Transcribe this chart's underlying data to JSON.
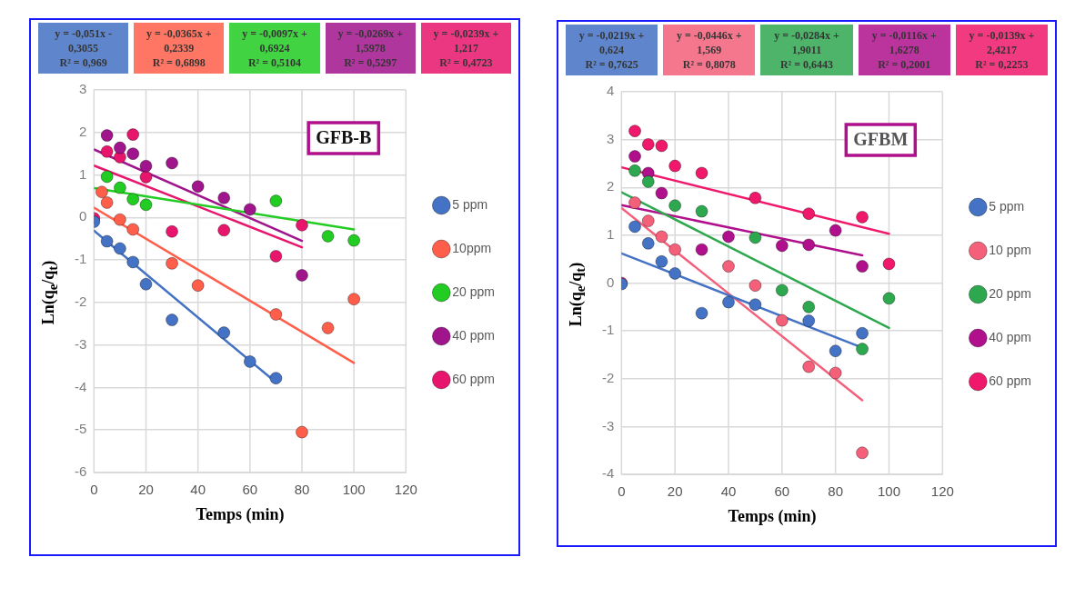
{
  "chart_data": [
    {
      "type": "scatter",
      "title": "GFB-B",
      "xlabel": "Temps (min)",
      "ylabel": "Ln(q$_{e}$/q$_{t}$)",
      "annotations": [
        "y = -0,051x - 0,3055\nR² = 0,969",
        "y = -0,0365x + 0,2339\nR² = 0,6898",
        "y = -0,0097x + 0,6924\nR² = 0,5104",
        "y = -0,0269x + 1,5978\nR² = 0,5297",
        "y = -0,0239x + 1,217\nR² = 0,4723"
      ],
      "xlim": [
        0,
        120
      ],
      "xticks": [
        0,
        20,
        40,
        60,
        80,
        100,
        120
      ],
      "ylim": [
        -6,
        3
      ],
      "yticks": [
        -6,
        -5,
        -4,
        -3,
        -2,
        -1,
        0,
        1,
        2,
        3
      ],
      "grid": true,
      "legend": "right",
      "marker": "circle",
      "series": [
        {
          "name": "5 ppm",
          "color": "#4472c4",
          "x": [
            0,
            5,
            10,
            15,
            20,
            30,
            50,
            60,
            70
          ],
          "values": [
            -0.1,
            -0.56,
            -0.73,
            -1.05,
            -1.57,
            -2.41,
            -2.71,
            -3.39,
            -3.78
          ]
        },
        {
          "name": "10ppm",
          "color": "#ff5f4a",
          "x": [
            3,
            5,
            10,
            15,
            30,
            40,
            70,
            80,
            90,
            100
          ],
          "values": [
            0.6,
            0.35,
            -0.05,
            -0.28,
            -1.08,
            -1.6,
            -2.28,
            -5.05,
            -2.6,
            -1.92
          ]
        },
        {
          "name": "20 ppm",
          "color": "#22cc22",
          "x": [
            5,
            10,
            15,
            20,
            70,
            90,
            100
          ],
          "values": [
            0.96,
            0.7,
            0.43,
            0.3,
            0.39,
            -0.44,
            -0.54
          ]
        },
        {
          "name": "40 ppm",
          "color": "#a0148c",
          "x": [
            5,
            10,
            15,
            20,
            30,
            40,
            50,
            60,
            80
          ],
          "values": [
            1.93,
            1.64,
            1.5,
            1.21,
            1.28,
            0.73,
            0.46,
            0.19,
            -1.36
          ]
        },
        {
          "name": "60 ppm",
          "color": "#e8156c",
          "x": [
            0,
            5,
            10,
            15,
            20,
            30,
            50,
            70,
            80
          ],
          "values": [
            -0.02,
            1.55,
            1.42,
            1.95,
            0.95,
            -0.33,
            -0.3,
            -0.91,
            -0.18
          ]
        },
        {
          "type": "line",
          "marker": "none",
          "color": "#4472c4",
          "x": [
            0,
            70
          ],
          "values": [
            -0.31,
            -3.88
          ]
        },
        {
          "type": "line",
          "marker": "none",
          "color": "#ff5f4a",
          "x": [
            0,
            100
          ],
          "values": [
            0.23,
            -3.42
          ]
        },
        {
          "type": "line",
          "marker": "none",
          "color": "#22cc22",
          "x": [
            0,
            100
          ],
          "values": [
            0.69,
            -0.28
          ]
        },
        {
          "type": "line",
          "marker": "none",
          "color": "#a0148c",
          "x": [
            0,
            80
          ],
          "values": [
            1.6,
            -0.55
          ]
        },
        {
          "type": "line",
          "marker": "none",
          "color": "#e8156c",
          "x": [
            0,
            80
          ],
          "values": [
            1.22,
            -0.7
          ]
        }
      ]
    },
    {
      "type": "scatter",
      "title": "GFBM",
      "xlabel": "Temps (min)",
      "ylabel": "Ln(q$_{e}$/q$_{t}$)",
      "annotations": [
        "y = -0,0219x + 0,624\nR² = 0,7625",
        "y = -0,0446x + 1,569\nR² = 0,8078",
        "y = -0,0284x + 1,9011\nR² = 0,6443",
        "y = -0,0116x + 1,6278\nR² = 0,2001",
        "y = -0,0139x + 2,4217\nR² = 0,2253"
      ],
      "xlim": [
        0,
        120
      ],
      "xticks": [
        0,
        20,
        40,
        60,
        80,
        100,
        120
      ],
      "ylim": [
        -4,
        4
      ],
      "yticks": [
        -4,
        -3,
        -2,
        -1,
        0,
        1,
        2,
        3,
        4
      ],
      "grid": true,
      "legend": "right",
      "marker": "circle",
      "series": [
        {
          "name": "5 ppm",
          "color": "#4472c4",
          "x": [
            0,
            5,
            10,
            15,
            20,
            30,
            40,
            50,
            70,
            80,
            90
          ],
          "values": [
            -0.02,
            1.18,
            0.83,
            0.45,
            0.2,
            -0.63,
            -0.4,
            -0.45,
            -0.79,
            -1.42,
            -1.05
          ]
        },
        {
          "name": "10 ppm",
          "color": "#f4607a",
          "x": [
            5,
            10,
            15,
            20,
            40,
            50,
            60,
            70,
            80,
            90
          ],
          "values": [
            1.68,
            1.3,
            0.97,
            0.7,
            0.35,
            -0.05,
            -0.78,
            -1.75,
            -1.88,
            -3.55
          ]
        },
        {
          "name": "20 ppm",
          "color": "#2ea84f",
          "x": [
            5,
            10,
            20,
            30,
            50,
            60,
            70,
            90,
            100
          ],
          "values": [
            2.35,
            2.12,
            1.62,
            1.5,
            0.95,
            -0.15,
            -0.5,
            -1.38,
            -0.32
          ]
        },
        {
          "name": "40 ppm",
          "color": "#b0108c",
          "x": [
            5,
            10,
            15,
            30,
            40,
            60,
            70,
            80,
            90
          ],
          "values": [
            2.65,
            2.3,
            1.88,
            0.7,
            0.97,
            0.78,
            0.8,
            1.1,
            0.35
          ]
        },
        {
          "name": "60 ppm",
          "color": "#f0186a",
          "x": [
            0,
            5,
            10,
            15,
            20,
            30,
            50,
            70,
            90,
            100
          ],
          "values": [
            0,
            3.18,
            2.9,
            2.87,
            2.45,
            2.3,
            1.78,
            1.45,
            1.38,
            0.4
          ]
        },
        {
          "type": "line",
          "marker": "none",
          "color": "#4472c4",
          "x": [
            0,
            90
          ],
          "values": [
            0.62,
            -1.35
          ]
        },
        {
          "type": "line",
          "marker": "none",
          "color": "#f4607a",
          "x": [
            0,
            90
          ],
          "values": [
            1.57,
            -2.45
          ]
        },
        {
          "type": "line",
          "marker": "none",
          "color": "#2ea84f",
          "x": [
            0,
            100
          ],
          "values": [
            1.9,
            -0.94
          ]
        },
        {
          "type": "line",
          "marker": "none",
          "color": "#b0108c",
          "x": [
            0,
            90
          ],
          "values": [
            1.63,
            0.58
          ]
        },
        {
          "type": "line",
          "marker": "none",
          "color": "#f0186a",
          "x": [
            0,
            100
          ],
          "values": [
            2.42,
            1.03
          ]
        }
      ]
    }
  ]
}
